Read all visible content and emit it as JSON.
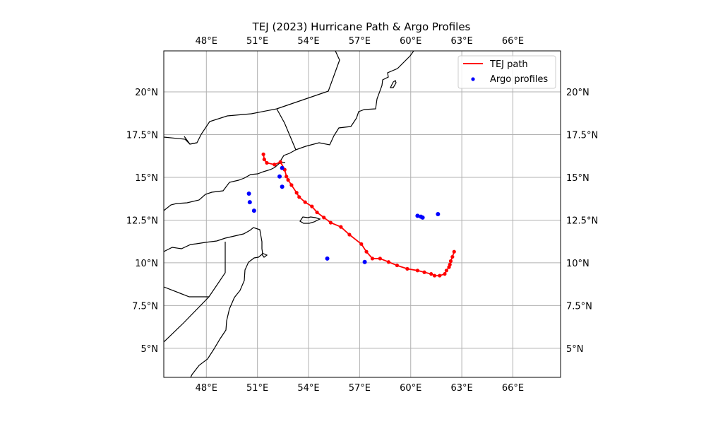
{
  "chart_data": {
    "type": "map",
    "title": "TEJ (2023) Hurricane Path & Argo Profiles",
    "extent": {
      "lon": [
        45.5,
        68.8
      ],
      "lat": [
        3.3,
        22.4
      ]
    },
    "grid": true,
    "legend_position": "top-right",
    "xticks": [
      {
        "value": 48,
        "label": "48°E"
      },
      {
        "value": 51,
        "label": "51°E"
      },
      {
        "value": 54,
        "label": "54°E"
      },
      {
        "value": 57,
        "label": "57°E"
      },
      {
        "value": 60,
        "label": "60°E"
      },
      {
        "value": 63,
        "label": "63°E"
      },
      {
        "value": 66,
        "label": "66°E"
      }
    ],
    "yticks": [
      {
        "value": 5,
        "label": "5°N"
      },
      {
        "value": 7.5,
        "label": "7.5°N"
      },
      {
        "value": 10,
        "label": "10°N"
      },
      {
        "value": 12.5,
        "label": "12.5°N"
      },
      {
        "value": 15,
        "label": "15°N"
      },
      {
        "value": 17.5,
        "label": "17.5°N"
      },
      {
        "value": 20,
        "label": "20°N"
      }
    ],
    "series": [
      {
        "name": "TEJ path",
        "color": "#ff0000",
        "lon": [
          62.55,
          62.45,
          62.35,
          62.3,
          62.25,
          62.1,
          62.0,
          61.7,
          61.4,
          61.2,
          60.8,
          60.4,
          59.8,
          59.2,
          58.7,
          58.2,
          57.75,
          57.4,
          57.1,
          56.4,
          55.9,
          55.3,
          54.9,
          54.5,
          54.2,
          53.8,
          53.45,
          53.3,
          53.0,
          52.8,
          52.7,
          52.6,
          52.35,
          52.0,
          51.55,
          51.4,
          51.35
        ],
        "lat": [
          10.65,
          10.35,
          10.1,
          9.9,
          9.75,
          9.55,
          9.35,
          9.25,
          9.25,
          9.35,
          9.45,
          9.55,
          9.65,
          9.85,
          10.05,
          10.25,
          10.25,
          10.65,
          11.1,
          11.65,
          12.1,
          12.35,
          12.65,
          12.95,
          13.3,
          13.55,
          13.85,
          14.1,
          14.55,
          14.85,
          15.05,
          15.45,
          15.9,
          15.75,
          15.85,
          16.05,
          16.35
        ]
      },
      {
        "name": "Argo profiles",
        "color": "#0000ff",
        "lon": [
          50.5,
          50.55,
          50.8,
          52.3,
          52.45,
          52.45,
          55.1,
          57.3,
          60.4,
          60.6,
          60.7,
          61.6
        ],
        "lat": [
          14.05,
          13.55,
          13.05,
          15.05,
          15.55,
          14.45,
          10.25,
          10.05,
          12.75,
          12.7,
          12.65,
          12.85
        ]
      }
    ]
  }
}
